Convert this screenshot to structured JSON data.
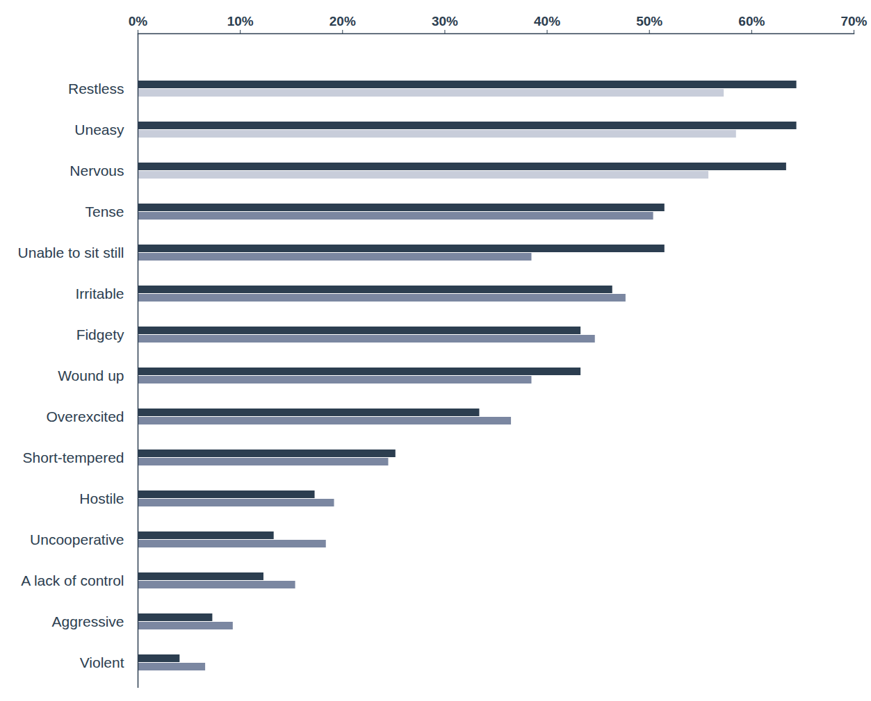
{
  "chart_data": {
    "type": "bar",
    "orientation": "horizontal",
    "categories": [
      "Restless",
      "Uneasy",
      "Nervous",
      "Tense",
      "Unable to sit still",
      "Irritable",
      "Fidgety",
      "Wound up",
      "Overexcited",
      "Short-tempered",
      "Hostile",
      "Uncooperative",
      "A lack of control",
      "Aggressive",
      "Violent"
    ],
    "series": [
      {
        "color": "#2c3e50",
        "values": [
          64.4,
          64.4,
          63.4,
          51.5,
          51.5,
          46.4,
          43.3,
          43.3,
          33.4,
          25.2,
          17.3,
          13.3,
          12.3,
          7.3,
          4.1
        ]
      },
      {
        "colors": [
          "#c8cdda",
          "#c8cdda",
          "#c8cdda",
          "#7b87a1",
          "#7b87a1",
          "#7b87a1",
          "#7b87a1",
          "#7b87a1",
          "#7b87a1",
          "#7b87a1",
          "#7b87a1",
          "#7b87a1",
          "#7b87a1",
          "#7b87a1",
          "#7b87a1"
        ],
        "values": [
          57.3,
          58.5,
          55.8,
          50.4,
          38.5,
          47.7,
          44.7,
          38.5,
          36.5,
          24.5,
          19.2,
          18.4,
          15.4,
          9.3,
          6.6
        ]
      }
    ],
    "xlim": [
      0,
      70
    ],
    "xticks": [
      {
        "value": 0,
        "label": "0%"
      },
      {
        "value": 10,
        "label": "10%"
      },
      {
        "value": 20,
        "label": "20%"
      },
      {
        "value": 30,
        "label": "30%"
      },
      {
        "value": 40,
        "label": "40%"
      },
      {
        "value": 50,
        "label": "50%"
      },
      {
        "value": 60,
        "label": "60%"
      },
      {
        "value": 70,
        "label": "70%"
      }
    ],
    "grid": false
  }
}
